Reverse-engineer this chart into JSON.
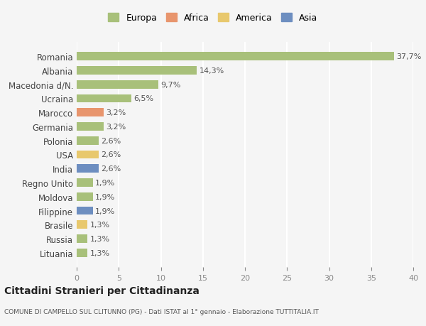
{
  "countries": [
    "Romania",
    "Albania",
    "Macedonia d/N.",
    "Ucraina",
    "Marocco",
    "Germania",
    "Polonia",
    "USA",
    "India",
    "Regno Unito",
    "Moldova",
    "Filippine",
    "Brasile",
    "Russia",
    "Lituania"
  ],
  "values": [
    37.7,
    14.3,
    9.7,
    6.5,
    3.2,
    3.2,
    2.6,
    2.6,
    2.6,
    1.9,
    1.9,
    1.9,
    1.3,
    1.3,
    1.3
  ],
  "labels": [
    "37,7%",
    "14,3%",
    "9,7%",
    "6,5%",
    "3,2%",
    "3,2%",
    "2,6%",
    "2,6%",
    "2,6%",
    "1,9%",
    "1,9%",
    "1,9%",
    "1,3%",
    "1,3%",
    "1,3%"
  ],
  "continents": [
    "Europa",
    "Europa",
    "Europa",
    "Europa",
    "Africa",
    "Europa",
    "Europa",
    "America",
    "Asia",
    "Europa",
    "Europa",
    "Asia",
    "America",
    "Europa",
    "Europa"
  ],
  "colors": {
    "Europa": "#a8c07a",
    "Africa": "#e8956d",
    "America": "#e8c86d",
    "Asia": "#6d8ec0"
  },
  "legend_order": [
    "Europa",
    "Africa",
    "America",
    "Asia"
  ],
  "xlim": [
    0,
    40
  ],
  "xticks": [
    0,
    5,
    10,
    15,
    20,
    25,
    30,
    35,
    40
  ],
  "title": "Cittadini Stranieri per Cittadinanza",
  "subtitle": "COMUNE DI CAMPELLO SUL CLITUNNO (PG) - Dati ISTAT al 1° gennaio - Elaborazione TUTTITALIA.IT",
  "bg_color": "#f5f5f5",
  "grid_color": "#ffffff",
  "bar_height": 0.6
}
